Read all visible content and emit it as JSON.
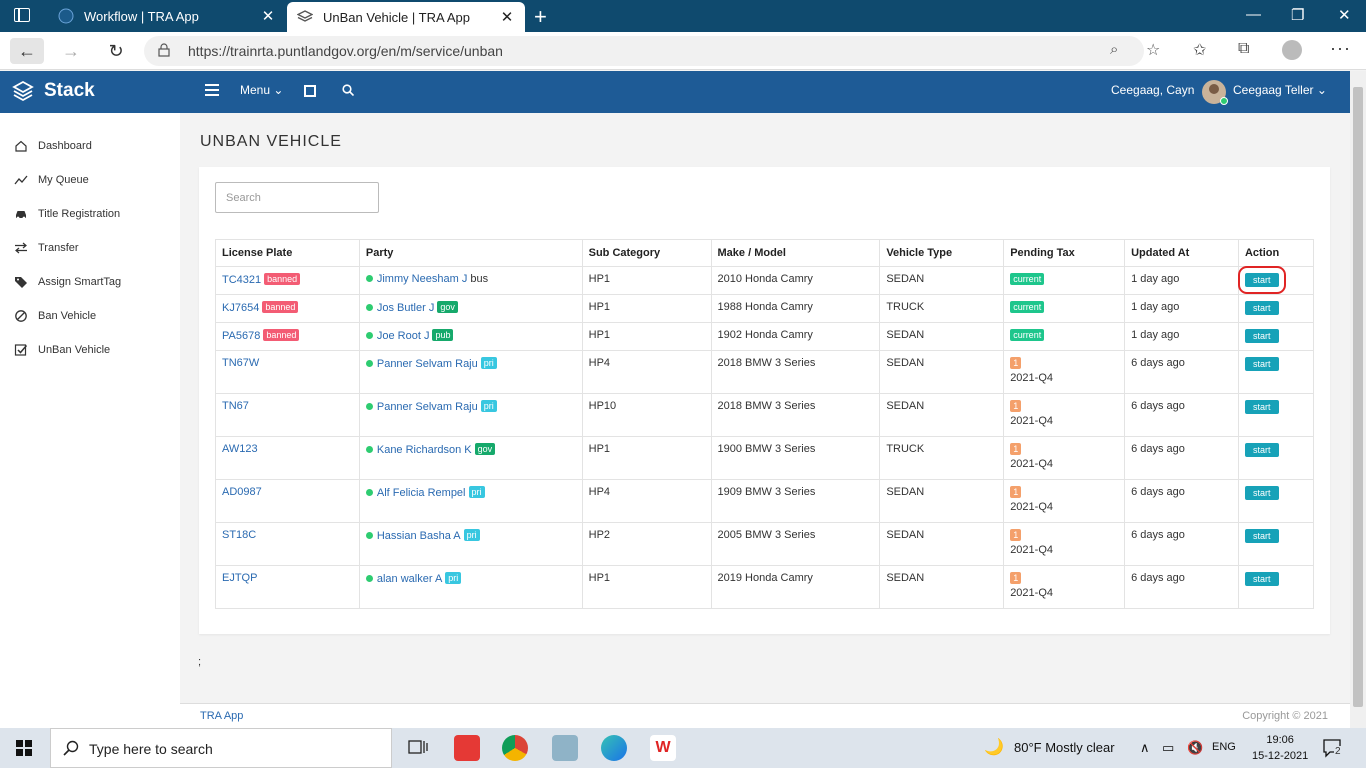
{
  "browser": {
    "tabs": [
      {
        "label": "Workflow | TRA App",
        "active": false
      },
      {
        "label": "UnBan Vehicle | TRA App",
        "active": true
      }
    ],
    "url": "https://trainrta.puntlandgov.org/en/m/service/unban",
    "close_glyph": "✕",
    "newtab_glyph": "+"
  },
  "header": {
    "brand": "Stack",
    "menu_label": "Menu",
    "user_name": "Ceegaag, Cayn",
    "user_role": "Ceegaag Teller"
  },
  "sidebar": {
    "items": [
      {
        "label": "Dashboard",
        "icon": "home-icon"
      },
      {
        "label": "My Queue",
        "icon": "trend-icon"
      },
      {
        "label": "Title Registration",
        "icon": "car-icon"
      },
      {
        "label": "Transfer",
        "icon": "transfer-icon"
      },
      {
        "label": "Assign SmartTag",
        "icon": "tag-icon"
      },
      {
        "label": "Ban Vehicle",
        "icon": "ban-icon"
      },
      {
        "label": "UnBan Vehicle",
        "icon": "checkbox-icon"
      }
    ]
  },
  "page": {
    "title": "UNBAN VEHICLE",
    "search_placeholder": "Search",
    "trailing_text": ";"
  },
  "table": {
    "headers": [
      "License Plate",
      "Party",
      "Sub Category",
      "Make / Model",
      "Vehicle Type",
      "Pending Tax",
      "Updated At",
      "Action"
    ],
    "rows": [
      {
        "plate": "TC4321",
        "plate_badge": "banned",
        "party": "Jimmy Neesham J",
        "party_badge": "",
        "party_suffix": "bus",
        "sub": "HP1",
        "model": "2010 Honda Camry",
        "type": "SEDAN",
        "tax_badge": "current",
        "tax_period": "",
        "updated": "1 day ago",
        "action": "start"
      },
      {
        "plate": "KJ7654",
        "plate_badge": "banned",
        "party": "Jos Butler J",
        "party_badge": "gov",
        "party_suffix": "",
        "sub": "HP1",
        "model": "1988 Honda Camry",
        "type": "TRUCK",
        "tax_badge": "current",
        "tax_period": "",
        "updated": "1 day ago",
        "action": "start"
      },
      {
        "plate": "PA5678",
        "plate_badge": "banned",
        "party": "Joe Root J",
        "party_badge": "pub",
        "party_suffix": "",
        "sub": "HP1",
        "model": "1902 Honda Camry",
        "type": "SEDAN",
        "tax_badge": "current",
        "tax_period": "",
        "updated": "1 day ago",
        "action": "start"
      },
      {
        "plate": "TN67W",
        "plate_badge": "",
        "party": "Panner Selvam Raju",
        "party_badge": "pri",
        "party_suffix": "",
        "sub": "HP4",
        "model": "2018 BMW 3 Series",
        "type": "SEDAN",
        "tax_badge": "1",
        "tax_period": "2021-Q4",
        "updated": "6 days ago",
        "action": "start"
      },
      {
        "plate": "TN67",
        "plate_badge": "",
        "party": "Panner Selvam Raju",
        "party_badge": "pri",
        "party_suffix": "",
        "sub": "HP10",
        "model": "2018 BMW 3 Series",
        "type": "SEDAN",
        "tax_badge": "1",
        "tax_period": "2021-Q4",
        "updated": "6 days ago",
        "action": "start"
      },
      {
        "plate": "AW123",
        "plate_badge": "",
        "party": "Kane Richardson K",
        "party_badge": "gov",
        "party_suffix": "",
        "sub": "HP1",
        "model": "1900 BMW 3 Series",
        "type": "TRUCK",
        "tax_badge": "1",
        "tax_period": "2021-Q4",
        "updated": "6 days ago",
        "action": "start"
      },
      {
        "plate": "AD0987",
        "plate_badge": "",
        "party": "Alf Felicia Rempel",
        "party_badge": "pri",
        "party_suffix": "",
        "sub": "HP4",
        "model": "1909 BMW 3 Series",
        "type": "SEDAN",
        "tax_badge": "1",
        "tax_period": "2021-Q4",
        "updated": "6 days ago",
        "action": "start"
      },
      {
        "plate": "ST18C",
        "plate_badge": "",
        "party": "Hassian Basha A",
        "party_badge": "pri",
        "party_suffix": "",
        "sub": "HP2",
        "model": "2005 BMW 3 Series",
        "type": "SEDAN",
        "tax_badge": "1",
        "tax_period": "2021-Q4",
        "updated": "6 days ago",
        "action": "start"
      },
      {
        "plate": "EJTQP",
        "plate_badge": "",
        "party": "alan walker A",
        "party_badge": "pri",
        "party_suffix": "",
        "sub": "HP1",
        "model": "2019 Honda Camry",
        "type": "SEDAN",
        "tax_badge": "1",
        "tax_period": "2021-Q4",
        "updated": "6 days ago",
        "action": "start"
      }
    ],
    "highlighted_row": 0
  },
  "footer": {
    "left": "TRA App",
    "right": "Copyright © 2021"
  },
  "taskbar": {
    "search_text": "Type here to search",
    "weather": "80°F  Mostly clear",
    "lang": "ENG",
    "time": "19:06",
    "date": "15-12-2021",
    "notifications": "2"
  },
  "colors": {
    "header": "#1e5b96",
    "tabbar": "#0f4a6e",
    "banned": "#f35c74",
    "gov": "#16a96b",
    "pri": "#38c7e0",
    "current": "#1ec68c",
    "pending": "#f4a06b",
    "start": "#17a2b8",
    "highlight": "#e02424"
  }
}
